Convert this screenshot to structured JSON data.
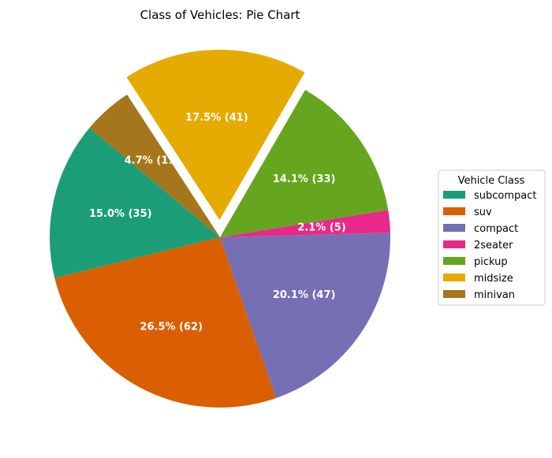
{
  "chart_data": {
    "type": "pie",
    "title": "Class of Vehicles: Pie Chart",
    "legend_title": "Vehicle Class",
    "legend_position": "center-right",
    "slices": [
      {
        "name": "subcompact",
        "value": 35,
        "label": "15.0% (35)",
        "color": "#1b9e77"
      },
      {
        "name": "suv",
        "value": 62,
        "label": "26.5% (62)",
        "color": "#d95f02"
      },
      {
        "name": "compact",
        "value": 47,
        "label": "20.1% (47)",
        "color": "#7570b3"
      },
      {
        "name": "2seater",
        "value": 5,
        "label": "2.1% (5)",
        "color": "#e7298a"
      },
      {
        "name": "pickup",
        "value": 33,
        "label": "14.1% (33)",
        "color": "#66a61e"
      },
      {
        "name": "midsize",
        "value": 41,
        "label": "17.5% (41)",
        "color": "#e6ab02",
        "exploded": true
      },
      {
        "name": "minivan",
        "value": 11,
        "label": "4.7% (11)",
        "color": "#a6761d"
      }
    ]
  }
}
